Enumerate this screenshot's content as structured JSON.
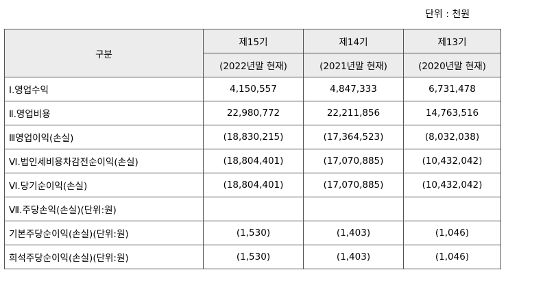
{
  "unit_label": "단위 : 천원",
  "header": {
    "category": "구분",
    "periods": [
      {
        "name": "제15기",
        "date": "(2022년말 현재)"
      },
      {
        "name": "제14기",
        "date": "(2021년말 현재)"
      },
      {
        "name": "제13기",
        "date": "(2020년말 현재)"
      }
    ]
  },
  "rows": [
    {
      "label": "Ⅰ.영업수익",
      "values": [
        "4,150,557",
        "4,847,333",
        "6,731,478"
      ]
    },
    {
      "label": "Ⅱ.영업비용",
      "values": [
        "22,980,772",
        "22,211,856",
        "14,763,516"
      ]
    },
    {
      "label": "Ⅲ영업이익(손실)",
      "values": [
        "(18,830,215)",
        "(17,364,523)",
        "(8,032,038)"
      ]
    },
    {
      "label": "Ⅵ.법인세비용차감전순이익(손실)",
      "values": [
        "(18,804,401)",
        "(17,070,885)",
        "(10,432,042)"
      ]
    },
    {
      "label": "Ⅵ.당기순이익(손실)",
      "values": [
        "(18,804,401)",
        "(17,070,885)",
        "(10,432,042)"
      ]
    },
    {
      "label": "Ⅶ.주당손익(손실)(단위:원)",
      "values": [
        "",
        "",
        ""
      ]
    },
    {
      "label": "기본주당순이익(손실)(단위:원)",
      "values": [
        "(1,530)",
        "(1,403)",
        "(1,046)"
      ]
    },
    {
      "label": "희석주당순이익(손실)(단위:원)",
      "values": [
        "(1,530)",
        "(1,403)",
        "(1,046)"
      ]
    }
  ]
}
